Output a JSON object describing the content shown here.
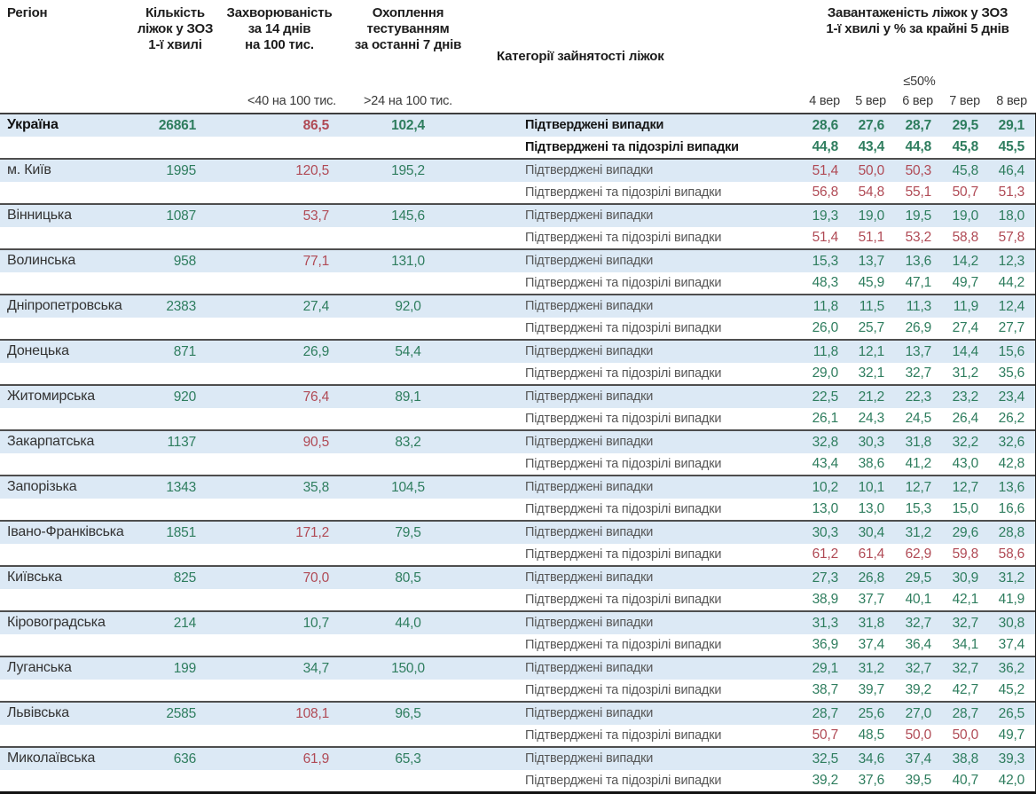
{
  "colors": {
    "g": "#2e7d5e",
    "r": "#b04a55",
    "row_blue": "#dce9f5",
    "separator": "#4e4e4e",
    "header_text": "#1c1c1c",
    "category_text": "#575757"
  },
  "header": {
    "region": "Регіон",
    "beds": "Кількість\nліжок у ЗОЗ\n1-ї хвилі",
    "incidence": "Захворюваність\nза 14 днів\nна 100 тис.",
    "testing": "Охоплення\nтестуванням\nза останні 7 днів",
    "category": "Категорії зайнятості ліжок",
    "occupancy": "Завантаженість ліжок у ЗОЗ\n1-ї хвилі у % за крайні 5 днів",
    "incidence_threshold": "<40 на 100 тис.",
    "testing_threshold": ">24 на 100 тис.",
    "occupancy_threshold": "≤50%",
    "dates": [
      "4 вер",
      "5 вер",
      "6 вер",
      "7 вер",
      "8 вер"
    ]
  },
  "row_labels": {
    "confirmed": "Підтверджені випадки",
    "confirmed_suspected": "Підтверджені та підозрілі випадки"
  },
  "chart_data": {
    "type": "table",
    "columns": [
      "Регіон",
      "Кількість ліжок у ЗОЗ 1-ї хвилі",
      "Захворюваність за 14 днів на 100 тис.",
      "Охоплення тестуванням за останні 7 днів",
      "Категорії зайнятості ліжок",
      "4 вер",
      "5 вер",
      "6 вер",
      "7 вер",
      "8 вер"
    ],
    "regions": [
      {
        "name": "Україна",
        "bold": true,
        "beds": "26861",
        "inc": "86,5",
        "inc_c": "r",
        "test": "102,4",
        "test_c": "g",
        "r1": [
          "28,6",
          "27,6",
          "28,7",
          "29,5",
          "29,1"
        ],
        "r1c": "ggggg",
        "r2": [
          "44,8",
          "43,4",
          "44,8",
          "45,8",
          "45,5"
        ],
        "r2c": "ggggg"
      },
      {
        "name": "м. Київ",
        "beds": "1995",
        "inc": "120,5",
        "inc_c": "r",
        "test": "195,2",
        "test_c": "g",
        "r1": [
          "51,4",
          "50,0",
          "50,3",
          "45,8",
          "46,4"
        ],
        "r1c": "rrrgg",
        "r2": [
          "56,8",
          "54,8",
          "55,1",
          "50,7",
          "51,3"
        ],
        "r2c": "rrrrr"
      },
      {
        "name": "Вінницька",
        "beds": "1087",
        "inc": "53,7",
        "inc_c": "r",
        "test": "145,6",
        "test_c": "g",
        "r1": [
          "19,3",
          "19,0",
          "19,5",
          "19,0",
          "18,0"
        ],
        "r1c": "ggggg",
        "r2": [
          "51,4",
          "51,1",
          "53,2",
          "58,8",
          "57,8"
        ],
        "r2c": "rrrrr"
      },
      {
        "name": "Волинська",
        "beds": "958",
        "inc": "77,1",
        "inc_c": "r",
        "test": "131,0",
        "test_c": "g",
        "r1": [
          "15,3",
          "13,7",
          "13,6",
          "14,2",
          "12,3"
        ],
        "r1c": "ggggg",
        "r2": [
          "48,3",
          "45,9",
          "47,1",
          "49,7",
          "44,2"
        ],
        "r2c": "ggggg"
      },
      {
        "name": "Дніпропетровська",
        "beds": "2383",
        "inc": "27,4",
        "inc_c": "g",
        "test": "92,0",
        "test_c": "g",
        "r1": [
          "11,8",
          "11,5",
          "11,3",
          "11,9",
          "12,4"
        ],
        "r1c": "ggggg",
        "r2": [
          "26,0",
          "25,7",
          "26,9",
          "27,4",
          "27,7"
        ],
        "r2c": "ggggg"
      },
      {
        "name": "Донецька",
        "beds": "871",
        "inc": "26,9",
        "inc_c": "g",
        "test": "54,4",
        "test_c": "g",
        "r1": [
          "11,8",
          "12,1",
          "13,7",
          "14,4",
          "15,6"
        ],
        "r1c": "ggggg",
        "r2": [
          "29,0",
          "32,1",
          "32,7",
          "31,2",
          "35,6"
        ],
        "r2c": "ggggg"
      },
      {
        "name": "Житомирська",
        "beds": "920",
        "inc": "76,4",
        "inc_c": "r",
        "test": "89,1",
        "test_c": "g",
        "r1": [
          "22,5",
          "21,2",
          "22,3",
          "23,2",
          "23,4"
        ],
        "r1c": "ggggg",
        "r2": [
          "26,1",
          "24,3",
          "24,5",
          "26,4",
          "26,2"
        ],
        "r2c": "ggggg"
      },
      {
        "name": "Закарпатська",
        "beds": "1137",
        "inc": "90,5",
        "inc_c": "r",
        "test": "83,2",
        "test_c": "g",
        "r1": [
          "32,8",
          "30,3",
          "31,8",
          "32,2",
          "32,6"
        ],
        "r1c": "ggggg",
        "r2": [
          "43,4",
          "38,6",
          "41,2",
          "43,0",
          "42,8"
        ],
        "r2c": "ggggg"
      },
      {
        "name": "Запорізька",
        "beds": "1343",
        "inc": "35,8",
        "inc_c": "g",
        "test": "104,5",
        "test_c": "g",
        "r1": [
          "10,2",
          "10,1",
          "12,7",
          "12,7",
          "13,6"
        ],
        "r1c": "ggggg",
        "r2": [
          "13,0",
          "13,0",
          "15,3",
          "15,0",
          "16,6"
        ],
        "r2c": "ggggg"
      },
      {
        "name": "Івано-Франківська",
        "beds": "1851",
        "inc": "171,2",
        "inc_c": "r",
        "test": "79,5",
        "test_c": "g",
        "r1": [
          "30,3",
          "30,4",
          "31,2",
          "29,6",
          "28,8"
        ],
        "r1c": "ggggg",
        "r2": [
          "61,2",
          "61,4",
          "62,9",
          "59,8",
          "58,6"
        ],
        "r2c": "rrrrr"
      },
      {
        "name": "Київська",
        "beds": "825",
        "inc": "70,0",
        "inc_c": "r",
        "test": "80,5",
        "test_c": "g",
        "r1": [
          "27,3",
          "26,8",
          "29,5",
          "30,9",
          "31,2"
        ],
        "r1c": "ggggg",
        "r2": [
          "38,9",
          "37,7",
          "40,1",
          "42,1",
          "41,9"
        ],
        "r2c": "ggggg"
      },
      {
        "name": "Кіровоградська",
        "beds": "214",
        "inc": "10,7",
        "inc_c": "g",
        "test": "44,0",
        "test_c": "g",
        "r1": [
          "31,3",
          "31,8",
          "32,7",
          "32,7",
          "30,8"
        ],
        "r1c": "ggggg",
        "r2": [
          "36,9",
          "37,4",
          "36,4",
          "34,1",
          "37,4"
        ],
        "r2c": "ggggg"
      },
      {
        "name": "Луганська",
        "beds": "199",
        "inc": "34,7",
        "inc_c": "g",
        "test": "150,0",
        "test_c": "g",
        "r1": [
          "29,1",
          "31,2",
          "32,7",
          "32,7",
          "36,2"
        ],
        "r1c": "ggggg",
        "r2": [
          "38,7",
          "39,7",
          "39,2",
          "42,7",
          "45,2"
        ],
        "r2c": "ggggg"
      },
      {
        "name": "Львівська",
        "beds": "2585",
        "inc": "108,1",
        "inc_c": "r",
        "test": "96,5",
        "test_c": "g",
        "r1": [
          "28,7",
          "25,6",
          "27,0",
          "28,7",
          "26,5"
        ],
        "r1c": "ggggg",
        "r2": [
          "50,7",
          "48,5",
          "50,0",
          "50,0",
          "49,7"
        ],
        "r2c": "rgrrg"
      },
      {
        "name": "Миколаївська",
        "beds": "636",
        "inc": "61,9",
        "inc_c": "r",
        "test": "65,3",
        "test_c": "g",
        "r1": [
          "32,5",
          "34,6",
          "37,4",
          "38,8",
          "39,3"
        ],
        "r1c": "ggggg",
        "r2": [
          "39,2",
          "37,6",
          "39,5",
          "40,7",
          "42,0"
        ],
        "r2c": "ggggg"
      }
    ]
  }
}
